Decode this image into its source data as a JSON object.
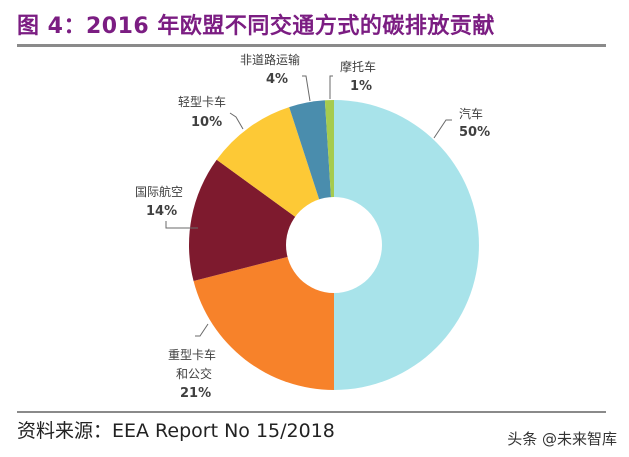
{
  "title": "图 4：2016 年欧盟不同交通方式的碳排放贡献",
  "source": "资料来源：EEA Report No 15/2018",
  "watermark": "头条 @未来智库",
  "chart_data": {
    "type": "pie",
    "variant": "donut",
    "title": "图 4：2016 年欧盟不同交通方式的碳排放贡献",
    "categories": [
      "汽车",
      "重型卡车和公交",
      "国际航空",
      "轻型卡车",
      "非道路运输",
      "摩托车"
    ],
    "values": [
      50,
      21,
      14,
      10,
      4,
      1
    ],
    "unit": "%",
    "colors": [
      "#a8e3ea",
      "#f7822a",
      "#7e1a2e",
      "#fdc936",
      "#4a8dad",
      "#a6cb4e"
    ],
    "start_angle": "12 o'clock, clockwise",
    "legend": "none (direct labels with leader lines)"
  },
  "labels": {
    "car": {
      "name": "汽车",
      "pct": "50%"
    },
    "hgv": {
      "name1": "重型卡车",
      "name2": "和公交",
      "pct": "21%"
    },
    "aviation": {
      "name": "国际航空",
      "pct": "14%"
    },
    "lcv": {
      "name": "轻型卡车",
      "pct": "10%"
    },
    "nonroad": {
      "name": "非道路运输",
      "pct": "4%"
    },
    "moto": {
      "name": "摩托车",
      "pct": "1%"
    }
  }
}
